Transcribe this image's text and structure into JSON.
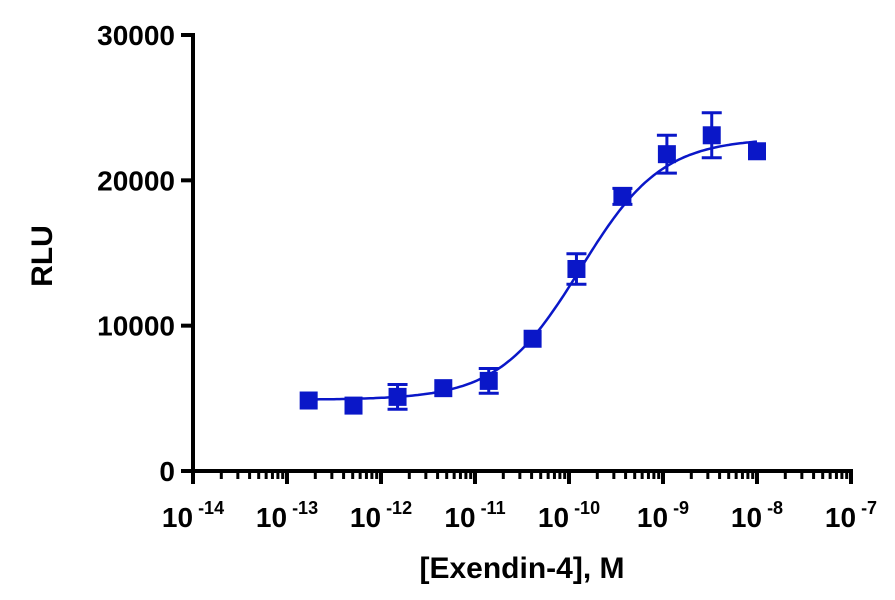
{
  "chart_data": {
    "type": "scatter",
    "title": "",
    "xlabel": "[Exendin-4], M",
    "ylabel": "RLU",
    "x_scale": "log10",
    "xlim_exponents": [
      -14,
      -7
    ],
    "ylim": [
      0,
      30000
    ],
    "x_ticks": [
      {
        "base": "10",
        "exp": "-14"
      },
      {
        "base": "10",
        "exp": "-13"
      },
      {
        "base": "10",
        "exp": "-12"
      },
      {
        "base": "10",
        "exp": "-11"
      },
      {
        "base": "10",
        "exp": "-10"
      },
      {
        "base": "10",
        "exp": "-9"
      },
      {
        "base": "10",
        "exp": "-8"
      },
      {
        "base": "10",
        "exp": "-7"
      }
    ],
    "y_ticks": [
      "0",
      "10000",
      "20000",
      "30000"
    ],
    "y_tick_values": [
      0,
      10000,
      20000,
      30000
    ],
    "colors": {
      "series": "#0a17c8",
      "axis": "#000000"
    },
    "series": [
      {
        "name": "Exendin-4",
        "marker": "square",
        "points": [
          {
            "x": 1.7e-13,
            "y": 4850,
            "err": 0
          },
          {
            "x": 5.1e-13,
            "y": 4500,
            "err": 0
          },
          {
            "x": 1.5e-12,
            "y": 5100,
            "err": 850
          },
          {
            "x": 4.6e-12,
            "y": 5700,
            "err": 0
          },
          {
            "x": 1.4e-11,
            "y": 6200,
            "err": 850
          },
          {
            "x": 4.1e-11,
            "y": 9100,
            "err": 0
          },
          {
            "x": 1.2e-10,
            "y": 13900,
            "err": 1050
          },
          {
            "x": 3.7e-10,
            "y": 18900,
            "err": 550
          },
          {
            "x": 1.1e-09,
            "y": 21800,
            "err": 1300
          },
          {
            "x": 3.3e-09,
            "y": 23100,
            "err": 1550
          },
          {
            "x": 1e-08,
            "y": 22000,
            "err": 0
          }
        ],
        "fit": {
          "model": "4PL",
          "bottom": 4900,
          "top": 22900,
          "logEC50": -9.88,
          "hill": 1.0,
          "x_range": [
            1.7e-13,
            1e-08
          ]
        }
      }
    ]
  }
}
